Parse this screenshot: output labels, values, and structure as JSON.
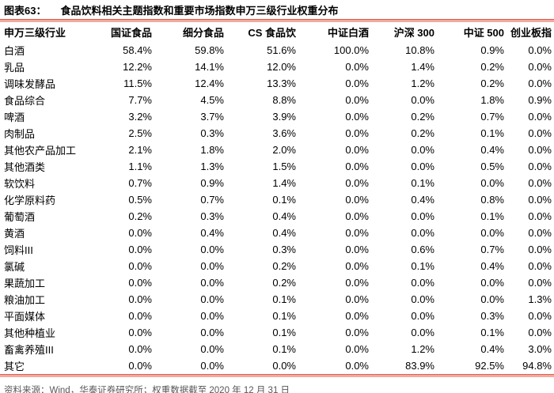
{
  "figure": {
    "label": "图表63：",
    "title": "食品饮料相关主题指数和重要市场指数申万三级行业权重分布"
  },
  "chart_data": {
    "type": "table",
    "title": "食品饮料相关主题指数和重要市场指数申万三级行业权重分布",
    "columns": [
      "申万三级行业",
      "国证食品",
      "细分食品",
      "CS 食品饮",
      "中证白酒",
      "沪深 300",
      "中证 500",
      "创业板指"
    ],
    "rows": [
      [
        "白酒",
        "58.4%",
        "59.8%",
        "51.6%",
        "100.0%",
        "10.8%",
        "0.9%",
        "0.0%"
      ],
      [
        "乳品",
        "12.2%",
        "14.1%",
        "12.0%",
        "0.0%",
        "1.4%",
        "0.2%",
        "0.0%"
      ],
      [
        "调味发酵品",
        "11.5%",
        "12.4%",
        "13.3%",
        "0.0%",
        "1.2%",
        "0.2%",
        "0.0%"
      ],
      [
        "食品综合",
        "7.7%",
        "4.5%",
        "8.8%",
        "0.0%",
        "0.0%",
        "1.8%",
        "0.9%"
      ],
      [
        "啤酒",
        "3.2%",
        "3.7%",
        "3.9%",
        "0.0%",
        "0.2%",
        "0.7%",
        "0.0%"
      ],
      [
        "肉制品",
        "2.5%",
        "0.3%",
        "3.6%",
        "0.0%",
        "0.2%",
        "0.1%",
        "0.0%"
      ],
      [
        "其他农产品加工",
        "2.1%",
        "1.8%",
        "2.0%",
        "0.0%",
        "0.0%",
        "0.4%",
        "0.0%"
      ],
      [
        "其他酒类",
        "1.1%",
        "1.3%",
        "1.5%",
        "0.0%",
        "0.0%",
        "0.5%",
        "0.0%"
      ],
      [
        "软饮料",
        "0.7%",
        "0.9%",
        "1.4%",
        "0.0%",
        "0.1%",
        "0.0%",
        "0.0%"
      ],
      [
        "化学原料药",
        "0.5%",
        "0.7%",
        "0.1%",
        "0.0%",
        "0.4%",
        "0.8%",
        "0.0%"
      ],
      [
        "葡萄酒",
        "0.2%",
        "0.3%",
        "0.4%",
        "0.0%",
        "0.0%",
        "0.1%",
        "0.0%"
      ],
      [
        "黄酒",
        "0.0%",
        "0.4%",
        "0.4%",
        "0.0%",
        "0.0%",
        "0.0%",
        "0.0%"
      ],
      [
        "饲料III",
        "0.0%",
        "0.0%",
        "0.3%",
        "0.0%",
        "0.6%",
        "0.7%",
        "0.0%"
      ],
      [
        "氯碱",
        "0.0%",
        "0.0%",
        "0.2%",
        "0.0%",
        "0.1%",
        "0.4%",
        "0.0%"
      ],
      [
        "果蔬加工",
        "0.0%",
        "0.0%",
        "0.2%",
        "0.0%",
        "0.0%",
        "0.0%",
        "0.0%"
      ],
      [
        "粮油加工",
        "0.0%",
        "0.0%",
        "0.1%",
        "0.0%",
        "0.0%",
        "0.0%",
        "1.3%"
      ],
      [
        "平面媒体",
        "0.0%",
        "0.0%",
        "0.1%",
        "0.0%",
        "0.0%",
        "0.3%",
        "0.0%"
      ],
      [
        "其他种植业",
        "0.0%",
        "0.0%",
        "0.1%",
        "0.0%",
        "0.0%",
        "0.1%",
        "0.0%"
      ],
      [
        "畜禽养殖III",
        "0.0%",
        "0.0%",
        "0.1%",
        "0.0%",
        "1.2%",
        "0.4%",
        "3.0%"
      ],
      [
        "其它",
        "0.0%",
        "0.0%",
        "0.0%",
        "0.0%",
        "83.9%",
        "92.5%",
        "94.8%"
      ]
    ],
    "legend_position": "none",
    "grid": false
  },
  "footer": {
    "source": "资料来源：Wind，华泰证券研究所；权重数据截至 2020 年 12 月 31 日"
  },
  "colors": {
    "rule_dark": "#d9594b",
    "rule_light": "#f3a99e",
    "text": "#000000",
    "source_text": "#575757"
  }
}
